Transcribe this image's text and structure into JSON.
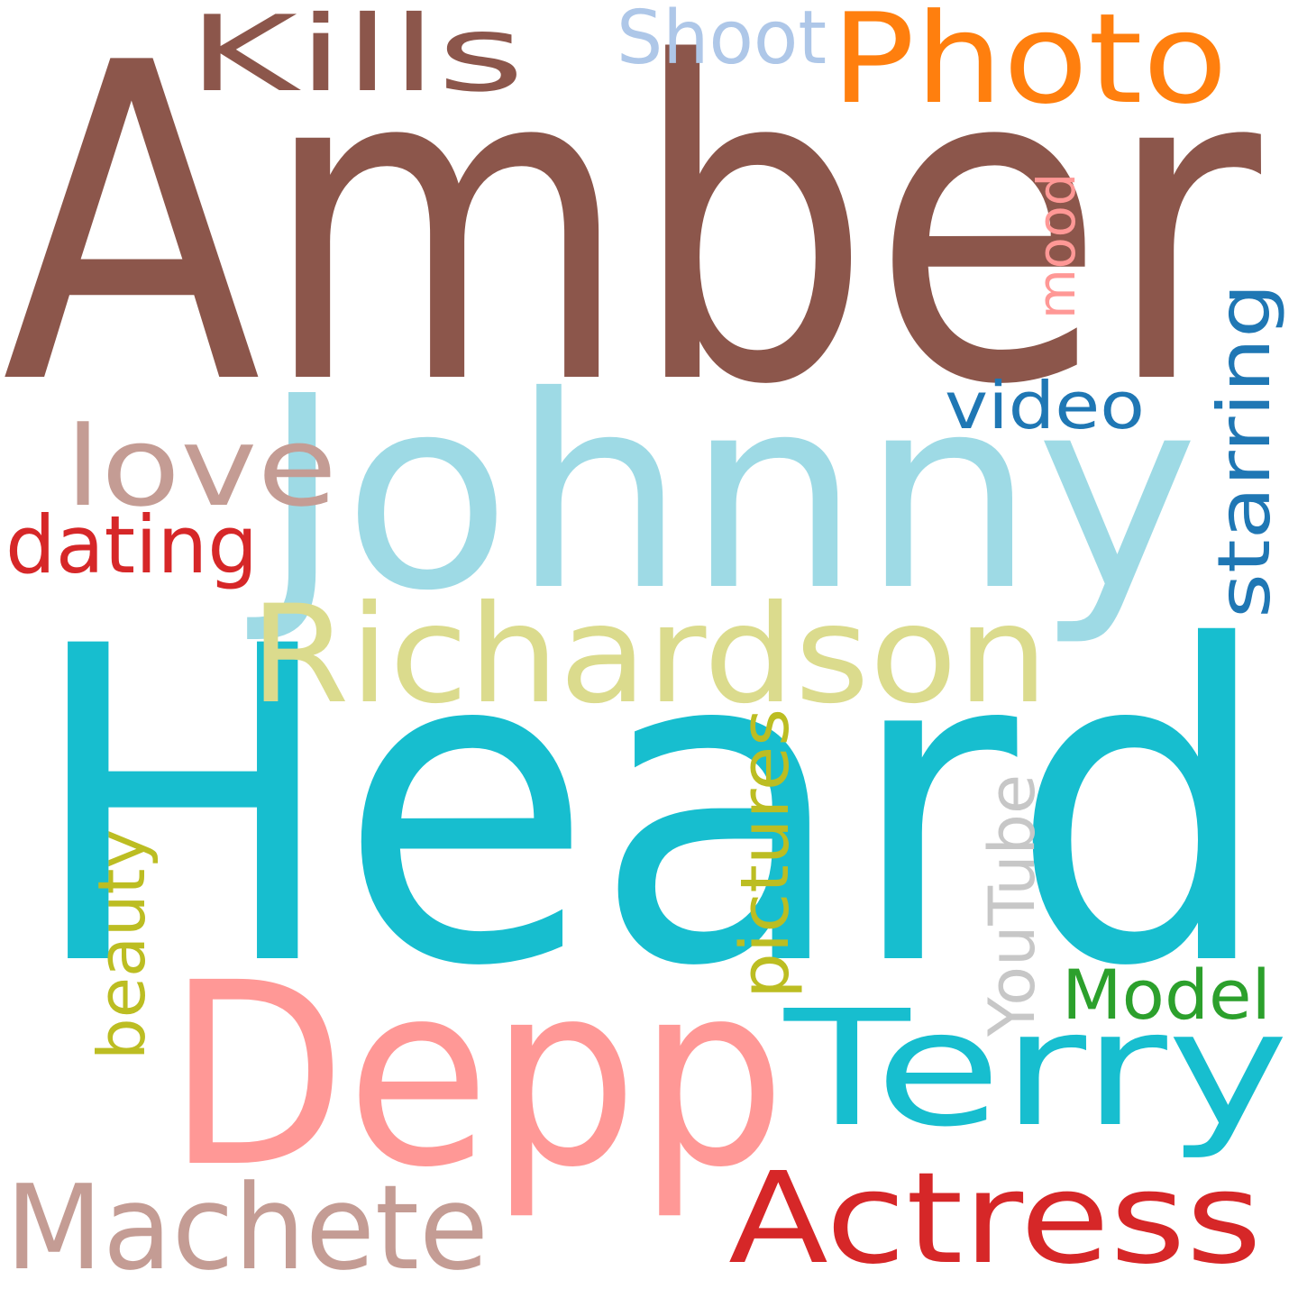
{
  "word_cloud": {
    "words": [
      {
        "text": "Amber",
        "color": "#8c564b",
        "orientation": "horizontal"
      },
      {
        "text": "Heard",
        "color": "#17becf",
        "orientation": "horizontal"
      },
      {
        "text": "Johnny",
        "color": "#9edae5",
        "orientation": "horizontal"
      },
      {
        "text": "Depp",
        "color": "#ff9896",
        "orientation": "horizontal"
      },
      {
        "text": "Richardson",
        "color": "#dbdb8d",
        "orientation": "horizontal"
      },
      {
        "text": "Terry",
        "color": "#17becf",
        "orientation": "horizontal"
      },
      {
        "text": "Photo",
        "color": "#ff7f0e",
        "orientation": "horizontal"
      },
      {
        "text": "Actress",
        "color": "#d62728",
        "orientation": "horizontal"
      },
      {
        "text": "Machete",
        "color": "#c49c94",
        "orientation": "horizontal"
      },
      {
        "text": "Kills",
        "color": "#8c564b",
        "orientation": "horizontal"
      },
      {
        "text": "love",
        "color": "#c49c94",
        "orientation": "horizontal"
      },
      {
        "text": "Shoot",
        "color": "#aec7e8",
        "orientation": "horizontal"
      },
      {
        "text": "starring",
        "color": "#1f77b4",
        "orientation": "vertical"
      },
      {
        "text": "dating",
        "color": "#d62728",
        "orientation": "horizontal"
      },
      {
        "text": "video",
        "color": "#1f77b4",
        "orientation": "horizontal"
      },
      {
        "text": "Model",
        "color": "#2ca02c",
        "orientation": "horizontal"
      },
      {
        "text": "pictures",
        "color": "#bcbd22",
        "orientation": "vertical"
      },
      {
        "text": "YouTube",
        "color": "#c7c7c7",
        "orientation": "vertical"
      },
      {
        "text": "beauty",
        "color": "#bcbd22",
        "orientation": "vertical"
      },
      {
        "text": "mood",
        "color": "#ff9896",
        "orientation": "vertical"
      }
    ]
  }
}
